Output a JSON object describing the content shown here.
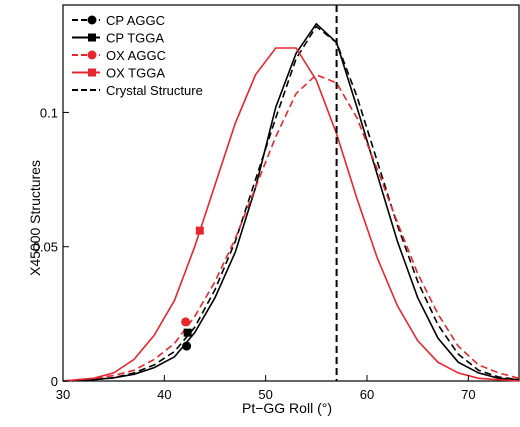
{
  "chart_data": {
    "type": "line",
    "title": "",
    "xlabel": "Pt−GG Roll (°)",
    "ylabel": "X45000 Structures",
    "xlim": [
      30,
      75
    ],
    "ylim": [
      0,
      0.14
    ],
    "xticks": [
      30,
      40,
      50,
      60,
      70
    ],
    "yticks": [
      0,
      0.05,
      0.1
    ],
    "ytick_labels": [
      "0",
      "0.05",
      "0.1"
    ],
    "grid": false,
    "legend_position": "top-left",
    "vline": {
      "x": 57,
      "name": "Crystal Structure",
      "color": "#000000",
      "dash": "dashed"
    },
    "series": [
      {
        "name": "CP AGGC",
        "color": "#000000",
        "dash": "dashed",
        "marker": "circle",
        "marker_point": [
          42.2,
          0.013
        ],
        "points": [
          [
            30,
            0
          ],
          [
            33,
            0.0005
          ],
          [
            35,
            0.0012
          ],
          [
            37,
            0.003
          ],
          [
            39,
            0.006
          ],
          [
            41,
            0.011
          ],
          [
            43,
            0.02
          ],
          [
            45,
            0.034
          ],
          [
            47,
            0.052
          ],
          [
            49,
            0.075
          ],
          [
            51,
            0.098
          ],
          [
            53,
            0.12
          ],
          [
            55,
            0.132
          ],
          [
            57,
            0.126
          ],
          [
            59,
            0.106
          ],
          [
            61,
            0.082
          ],
          [
            63,
            0.058
          ],
          [
            65,
            0.037
          ],
          [
            67,
            0.021
          ],
          [
            69,
            0.01
          ],
          [
            71,
            0.004
          ],
          [
            73,
            0.0015
          ],
          [
            75,
            0.0005
          ]
        ]
      },
      {
        "name": "CP TGGA",
        "color": "#000000",
        "dash": "solid",
        "marker": "square",
        "marker_point": [
          42.3,
          0.018
        ],
        "points": [
          [
            30,
            0
          ],
          [
            33,
            0.0005
          ],
          [
            35,
            0.0012
          ],
          [
            37,
            0.0025
          ],
          [
            39,
            0.005
          ],
          [
            41,
            0.009
          ],
          [
            43,
            0.018
          ],
          [
            45,
            0.031
          ],
          [
            47,
            0.048
          ],
          [
            49,
            0.072
          ],
          [
            51,
            0.102
          ],
          [
            53,
            0.122
          ],
          [
            55,
            0.133
          ],
          [
            57,
            0.126
          ],
          [
            59,
            0.102
          ],
          [
            61,
            0.077
          ],
          [
            63,
            0.052
          ],
          [
            65,
            0.031
          ],
          [
            67,
            0.016
          ],
          [
            69,
            0.007
          ],
          [
            71,
            0.003
          ],
          [
            73,
            0.001
          ],
          [
            75,
            0.0005
          ]
        ]
      },
      {
        "name": "OX AGGC",
        "color": "#e8262d",
        "dash": "dashed",
        "marker": "circle",
        "marker_point": [
          42.1,
          0.022
        ],
        "points": [
          [
            30,
            0
          ],
          [
            33,
            0.001
          ],
          [
            35,
            0.002
          ],
          [
            37,
            0.004
          ],
          [
            39,
            0.008
          ],
          [
            41,
            0.014
          ],
          [
            43,
            0.024
          ],
          [
            45,
            0.037
          ],
          [
            47,
            0.053
          ],
          [
            49,
            0.072
          ],
          [
            51,
            0.091
          ],
          [
            53,
            0.107
          ],
          [
            55,
            0.114
          ],
          [
            57,
            0.111
          ],
          [
            59,
            0.098
          ],
          [
            61,
            0.079
          ],
          [
            63,
            0.059
          ],
          [
            65,
            0.04
          ],
          [
            67,
            0.025
          ],
          [
            69,
            0.013
          ],
          [
            71,
            0.006
          ],
          [
            73,
            0.003
          ],
          [
            75,
            0.001
          ]
        ]
      },
      {
        "name": "OX TGGA",
        "color": "#e8262d",
        "dash": "solid",
        "marker": "square",
        "marker_point": [
          43.5,
          0.056
        ],
        "points": [
          [
            30,
            0
          ],
          [
            33,
            0.001
          ],
          [
            35,
            0.003
          ],
          [
            37,
            0.008
          ],
          [
            39,
            0.017
          ],
          [
            41,
            0.03
          ],
          [
            43,
            0.05
          ],
          [
            45,
            0.073
          ],
          [
            47,
            0.096
          ],
          [
            49,
            0.114
          ],
          [
            51,
            0.124
          ],
          [
            53,
            0.124
          ],
          [
            55,
            0.112
          ],
          [
            57,
            0.092
          ],
          [
            59,
            0.068
          ],
          [
            61,
            0.046
          ],
          [
            63,
            0.028
          ],
          [
            65,
            0.015
          ],
          [
            67,
            0.007
          ],
          [
            69,
            0.003
          ],
          [
            71,
            0.001
          ],
          [
            73,
            0.0005
          ],
          [
            75,
            0
          ]
        ]
      }
    ]
  }
}
